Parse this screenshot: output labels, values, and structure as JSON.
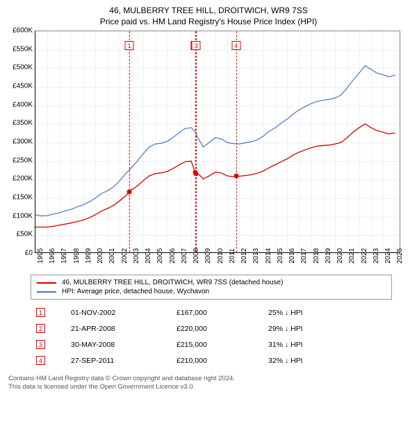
{
  "header": {
    "title": "46, MULBERRY TREE HILL, DROITWICH, WR9 7SS",
    "subtitle": "Price paid vs. HM Land Registry's House Price Index (HPI)"
  },
  "chart": {
    "type": "line",
    "background_color": "#ffffff",
    "grid_color": "#e8e8e8",
    "axis_font_size": 10,
    "x_range": [
      1995,
      2025.5
    ],
    "ylim": [
      0,
      600000
    ],
    "ytick_step": 50000,
    "y_prefix": "£",
    "y_suffix": "K",
    "y_divisor": 1000,
    "x_ticks": [
      1995,
      1996,
      1997,
      1998,
      1999,
      2000,
      2001,
      2002,
      2003,
      2004,
      2005,
      2006,
      2007,
      2008,
      2009,
      2010,
      2011,
      2012,
      2013,
      2014,
      2015,
      2016,
      2017,
      2018,
      2019,
      2020,
      2021,
      2022,
      2023,
      2024,
      2025
    ],
    "series": [
      {
        "id": "subject",
        "label": "46, MULBERRY TREE HILL, DROITWICH, WR9 7SS (detached house)",
        "color": "#d40000",
        "line_width": 1.3,
        "data": [
          [
            1995.0,
            72000
          ],
          [
            1995.5,
            72000
          ],
          [
            1996.0,
            72000
          ],
          [
            1996.5,
            74000
          ],
          [
            1997.0,
            77000
          ],
          [
            1997.5,
            80000
          ],
          [
            1998.0,
            83000
          ],
          [
            1998.5,
            87000
          ],
          [
            1999.0,
            91000
          ],
          [
            1999.5,
            97000
          ],
          [
            2000.0,
            105000
          ],
          [
            2000.5,
            115000
          ],
          [
            2001.0,
            122000
          ],
          [
            2001.5,
            130000
          ],
          [
            2002.0,
            142000
          ],
          [
            2002.5,
            155000
          ],
          [
            2002.84,
            167000
          ],
          [
            2003.0,
            172000
          ],
          [
            2003.5,
            183000
          ],
          [
            2004.0,
            197000
          ],
          [
            2004.5,
            210000
          ],
          [
            2005.0,
            216000
          ],
          [
            2005.5,
            218000
          ],
          [
            2006.0,
            222000
          ],
          [
            2006.5,
            230000
          ],
          [
            2007.0,
            240000
          ],
          [
            2007.5,
            248000
          ],
          [
            2008.0,
            250000
          ],
          [
            2008.31,
            220000
          ],
          [
            2008.41,
            215000
          ],
          [
            2008.7,
            212000
          ],
          [
            2009.0,
            202000
          ],
          [
            2009.5,
            210000
          ],
          [
            2010.0,
            220000
          ],
          [
            2010.5,
            218000
          ],
          [
            2011.0,
            210000
          ],
          [
            2011.5,
            208000
          ],
          [
            2011.74,
            210000
          ],
          [
            2012.0,
            209000
          ],
          [
            2012.5,
            211000
          ],
          [
            2013.0,
            213000
          ],
          [
            2013.5,
            217000
          ],
          [
            2014.0,
            223000
          ],
          [
            2014.5,
            232000
          ],
          [
            2015.0,
            240000
          ],
          [
            2015.5,
            248000
          ],
          [
            2016.0,
            256000
          ],
          [
            2016.5,
            266000
          ],
          [
            2017.0,
            274000
          ],
          [
            2017.5,
            280000
          ],
          [
            2018.0,
            286000
          ],
          [
            2018.5,
            290000
          ],
          [
            2019.0,
            292000
          ],
          [
            2019.5,
            293000
          ],
          [
            2020.0,
            296000
          ],
          [
            2020.5,
            300000
          ],
          [
            2021.0,
            313000
          ],
          [
            2021.5,
            328000
          ],
          [
            2022.0,
            340000
          ],
          [
            2022.5,
            350000
          ],
          [
            2023.0,
            340000
          ],
          [
            2023.5,
            332000
          ],
          [
            2024.0,
            328000
          ],
          [
            2024.5,
            323000
          ],
          [
            2025.0,
            326000
          ]
        ]
      },
      {
        "id": "hpi",
        "label": "HPI: Average price, detached house, Wychavon",
        "color": "#4a76c7",
        "line_width": 1.2,
        "data": [
          [
            1995.0,
            105000
          ],
          [
            1995.5,
            102000
          ],
          [
            1996.0,
            103000
          ],
          [
            1996.5,
            107000
          ],
          [
            1997.0,
            110000
          ],
          [
            1997.5,
            116000
          ],
          [
            1998.0,
            120000
          ],
          [
            1998.5,
            127000
          ],
          [
            1999.0,
            132000
          ],
          [
            1999.5,
            140000
          ],
          [
            2000.0,
            150000
          ],
          [
            2000.5,
            162000
          ],
          [
            2001.0,
            170000
          ],
          [
            2001.5,
            180000
          ],
          [
            2002.0,
            196000
          ],
          [
            2002.5,
            215000
          ],
          [
            2003.0,
            232000
          ],
          [
            2003.5,
            250000
          ],
          [
            2004.0,
            270000
          ],
          [
            2004.5,
            288000
          ],
          [
            2005.0,
            296000
          ],
          [
            2005.5,
            298000
          ],
          [
            2006.0,
            303000
          ],
          [
            2006.5,
            314000
          ],
          [
            2007.0,
            327000
          ],
          [
            2007.5,
            338000
          ],
          [
            2008.0,
            340000
          ],
          [
            2008.3,
            330000
          ],
          [
            2008.6,
            310000
          ],
          [
            2009.0,
            288000
          ],
          [
            2009.5,
            300000
          ],
          [
            2010.0,
            313000
          ],
          [
            2010.5,
            310000
          ],
          [
            2011.0,
            300000
          ],
          [
            2011.5,
            297000
          ],
          [
            2012.0,
            296000
          ],
          [
            2012.5,
            299000
          ],
          [
            2013.0,
            302000
          ],
          [
            2013.5,
            307000
          ],
          [
            2014.0,
            317000
          ],
          [
            2014.5,
            330000
          ],
          [
            2015.0,
            340000
          ],
          [
            2015.5,
            352000
          ],
          [
            2016.0,
            363000
          ],
          [
            2016.5,
            377000
          ],
          [
            2017.0,
            388000
          ],
          [
            2017.5,
            397000
          ],
          [
            2018.0,
            405000
          ],
          [
            2018.5,
            411000
          ],
          [
            2019.0,
            414000
          ],
          [
            2019.5,
            416000
          ],
          [
            2020.0,
            420000
          ],
          [
            2020.5,
            428000
          ],
          [
            2021.0,
            447000
          ],
          [
            2021.5,
            468000
          ],
          [
            2022.0,
            487000
          ],
          [
            2022.5,
            507000
          ],
          [
            2023.0,
            497000
          ],
          [
            2023.5,
            487000
          ],
          [
            2024.0,
            483000
          ],
          [
            2024.5,
            477000
          ],
          [
            2025.0,
            482000
          ]
        ]
      }
    ],
    "markers": [
      {
        "n": 1,
        "x": 2002.84,
        "y": 167000
      },
      {
        "n": 2,
        "x": 2008.31,
        "y": 220000
      },
      {
        "n": 3,
        "x": 2008.41,
        "y": 215000
      },
      {
        "n": 4,
        "x": 2011.74,
        "y": 210000
      }
    ],
    "marker_color": "#d40000",
    "marker_label_top_offset": 14
  },
  "sales": [
    {
      "n": 1,
      "date": "01-NOV-2002",
      "price": "£167,000",
      "delta": "25% ↓ HPI"
    },
    {
      "n": 2,
      "date": "21-APR-2008",
      "price": "£220,000",
      "delta": "29% ↓ HPI"
    },
    {
      "n": 3,
      "date": "30-MAY-2008",
      "price": "£215,000",
      "delta": "31% ↓ HPI"
    },
    {
      "n": 4,
      "date": "27-SEP-2011",
      "price": "£210,000",
      "delta": "32% ↓ HPI"
    }
  ],
  "footer": {
    "line1": "Contains HM Land Registry data © Crown copyright and database right 2024.",
    "line2": "This data is licensed under the Open Government Licence v3.0."
  }
}
